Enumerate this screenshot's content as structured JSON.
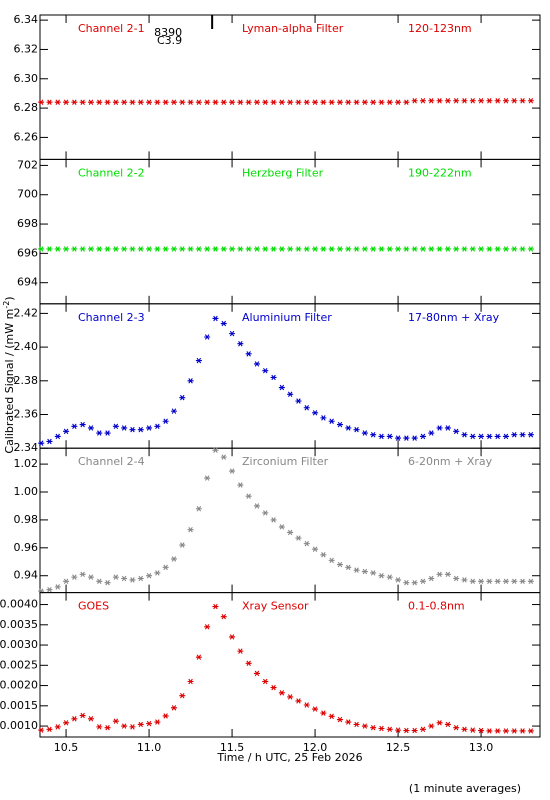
{
  "chart_data": [
    {
      "type": "scatter",
      "label": "Channel 2-1",
      "filter": "Lyman-alpha Filter",
      "band": "120-123nm",
      "color": "#dd0000",
      "event": {
        "x": 11.38,
        "labels": [
          "8390",
          "C3.9"
        ]
      },
      "x": [
        10.35,
        10.4,
        10.45,
        10.5,
        10.55,
        10.6,
        10.65,
        10.7,
        10.75,
        10.8,
        10.85,
        10.9,
        10.95,
        11.0,
        11.05,
        11.1,
        11.15,
        11.2,
        11.25,
        11.3,
        11.35,
        11.4,
        11.45,
        11.5,
        11.55,
        11.6,
        11.65,
        11.7,
        11.75,
        11.8,
        11.85,
        11.9,
        11.95,
        12.0,
        12.05,
        12.1,
        12.15,
        12.2,
        12.25,
        12.3,
        12.35,
        12.4,
        12.45,
        12.5,
        12.55,
        12.6,
        12.65,
        12.7,
        12.75,
        12.8,
        12.85,
        12.9,
        12.95,
        13.0,
        13.05,
        13.1,
        13.15,
        13.2,
        13.25,
        13.3
      ],
      "values": [
        6.284,
        6.284,
        6.284,
        6.284,
        6.284,
        6.284,
        6.284,
        6.284,
        6.284,
        6.284,
        6.284,
        6.284,
        6.284,
        6.284,
        6.284,
        6.284,
        6.284,
        6.284,
        6.284,
        6.284,
        6.284,
        6.284,
        6.284,
        6.284,
        6.284,
        6.284,
        6.284,
        6.284,
        6.284,
        6.284,
        6.284,
        6.284,
        6.284,
        6.284,
        6.284,
        6.284,
        6.284,
        6.284,
        6.284,
        6.284,
        6.284,
        6.284,
        6.284,
        6.284,
        6.284,
        6.285,
        6.285,
        6.285,
        6.285,
        6.285,
        6.285,
        6.285,
        6.285,
        6.285,
        6.285,
        6.285,
        6.285,
        6.285,
        6.285,
        6.285
      ],
      "ylim": [
        6.245,
        6.3435
      ],
      "yticks": [
        {
          "value": 6.26,
          "label": "6.26"
        },
        {
          "value": 6.28,
          "label": "6.28"
        },
        {
          "value": 6.3,
          "label": "6.30"
        },
        {
          "value": 6.32,
          "label": "6.32"
        },
        {
          "value": 6.34,
          "label": "6.34"
        }
      ]
    },
    {
      "type": "scatter",
      "label": "Channel 2-2",
      "filter": "Herzberg Filter",
      "band": "190-222nm",
      "color": "#00dd00",
      "x": [
        10.35,
        10.4,
        10.45,
        10.5,
        10.55,
        10.6,
        10.65,
        10.7,
        10.75,
        10.8,
        10.85,
        10.9,
        10.95,
        11.0,
        11.05,
        11.1,
        11.15,
        11.2,
        11.25,
        11.3,
        11.35,
        11.4,
        11.45,
        11.5,
        11.55,
        11.6,
        11.65,
        11.7,
        11.75,
        11.8,
        11.85,
        11.9,
        11.95,
        12.0,
        12.05,
        12.1,
        12.15,
        12.2,
        12.25,
        12.3,
        12.35,
        12.4,
        12.45,
        12.5,
        12.55,
        12.6,
        12.65,
        12.7,
        12.75,
        12.8,
        12.85,
        12.9,
        12.95,
        13.0,
        13.05,
        13.1,
        13.15,
        13.2,
        13.25,
        13.3
      ],
      "values": [
        696.3,
        696.3,
        696.3,
        696.3,
        696.3,
        696.3,
        696.3,
        696.3,
        696.3,
        696.3,
        696.3,
        696.3,
        696.3,
        696.3,
        696.3,
        696.3,
        696.3,
        696.3,
        696.3,
        696.3,
        696.3,
        696.3,
        696.3,
        696.3,
        696.3,
        696.3,
        696.3,
        696.3,
        696.3,
        696.3,
        696.3,
        696.3,
        696.3,
        696.3,
        696.3,
        696.3,
        696.3,
        696.3,
        696.3,
        696.3,
        696.3,
        696.3,
        696.3,
        696.3,
        696.3,
        696.3,
        696.3,
        696.3,
        696.3,
        696.3,
        696.3,
        696.3,
        696.3,
        696.3,
        696.3,
        696.3,
        696.3,
        696.3,
        696.3,
        696.3
      ],
      "ylim": [
        692.56,
        702.41
      ],
      "yticks": [
        694,
        696,
        698,
        700,
        702
      ]
    },
    {
      "type": "scatter",
      "label": "Channel 2-3",
      "filter": "Aluminium Filter",
      "band": "17-80nm + Xray",
      "color": "#0000cc",
      "x": [
        10.35,
        10.4,
        10.45,
        10.5,
        10.55,
        10.6,
        10.65,
        10.7,
        10.75,
        10.8,
        10.85,
        10.9,
        10.95,
        11.0,
        11.05,
        11.1,
        11.15,
        11.2,
        11.25,
        11.3,
        11.35,
        11.4,
        11.45,
        11.5,
        11.55,
        11.6,
        11.65,
        11.7,
        11.75,
        11.8,
        11.85,
        11.9,
        11.95,
        12.0,
        12.05,
        12.1,
        12.15,
        12.2,
        12.25,
        12.3,
        12.35,
        12.4,
        12.45,
        12.5,
        12.55,
        12.6,
        12.65,
        12.7,
        12.75,
        12.8,
        12.85,
        12.9,
        12.95,
        13.0,
        13.05,
        13.1,
        13.15,
        13.2,
        13.25,
        13.3
      ],
      "values": [
        2.343,
        2.344,
        2.347,
        2.35,
        2.353,
        2.354,
        2.352,
        2.349,
        2.349,
        2.353,
        2.352,
        2.351,
        2.351,
        2.352,
        2.353,
        2.356,
        2.362,
        2.37,
        2.38,
        2.392,
        2.406,
        2.417,
        2.414,
        2.408,
        2.402,
        2.396,
        2.39,
        2.386,
        2.382,
        2.376,
        2.372,
        2.368,
        2.364,
        2.361,
        2.358,
        2.356,
        2.354,
        2.352,
        2.351,
        2.349,
        2.348,
        2.347,
        2.347,
        2.346,
        2.346,
        2.346,
        2.347,
        2.349,
        2.352,
        2.352,
        2.35,
        2.348,
        2.347,
        2.347,
        2.347,
        2.347,
        2.347,
        2.348,
        2.348,
        2.348
      ],
      "ylim": [
        2.34,
        2.4257
      ],
      "yticks": [
        2.34,
        2.36,
        2.38,
        {
          "value": 2.4,
          "label": "2.40"
        },
        2.42
      ]
    },
    {
      "type": "scatter",
      "label": "Channel 2-4",
      "filter": "Zirconium Filter",
      "band": "6-20nm + Xray",
      "color": "#888888",
      "x": [
        10.35,
        10.4,
        10.45,
        10.5,
        10.55,
        10.6,
        10.65,
        10.7,
        10.75,
        10.8,
        10.85,
        10.9,
        10.95,
        11.0,
        11.05,
        11.1,
        11.15,
        11.2,
        11.25,
        11.3,
        11.35,
        11.4,
        11.45,
        11.5,
        11.55,
        11.6,
        11.65,
        11.7,
        11.75,
        11.8,
        11.85,
        11.9,
        11.95,
        12.0,
        12.05,
        12.1,
        12.15,
        12.2,
        12.25,
        12.3,
        12.35,
        12.4,
        12.45,
        12.5,
        12.55,
        12.6,
        12.65,
        12.7,
        12.75,
        12.8,
        12.85,
        12.9,
        12.95,
        13.0,
        13.05,
        13.1,
        13.15,
        13.2,
        13.25,
        13.3
      ],
      "values": [
        0.929,
        0.93,
        0.932,
        0.936,
        0.939,
        0.941,
        0.939,
        0.936,
        0.935,
        0.939,
        0.938,
        0.937,
        0.938,
        0.94,
        0.942,
        0.946,
        0.952,
        0.962,
        0.973,
        0.988,
        1.01,
        1.03,
        1.025,
        1.015,
        1.005,
        0.997,
        0.99,
        0.985,
        0.98,
        0.975,
        0.971,
        0.967,
        0.963,
        0.959,
        0.955,
        0.951,
        0.948,
        0.946,
        0.944,
        0.943,
        0.942,
        0.94,
        0.939,
        0.937,
        0.935,
        0.935,
        0.936,
        0.938,
        0.941,
        0.941,
        0.938,
        0.937,
        0.936,
        0.936,
        0.936,
        0.936,
        0.936,
        0.936,
        0.936,
        0.936
      ],
      "ylim": [
        0.9279,
        1.0314
      ],
      "yticks": [
        0.94,
        0.96,
        0.98,
        {
          "value": 1.0,
          "label": "1.00"
        },
        1.02
      ]
    },
    {
      "type": "scatter",
      "label": "GOES",
      "filter": "Xray Sensor",
      "band": "0.1-0.8nm",
      "color": "#dd0000",
      "x": [
        10.35,
        10.4,
        10.45,
        10.5,
        10.55,
        10.6,
        10.65,
        10.7,
        10.75,
        10.8,
        10.85,
        10.9,
        10.95,
        11.0,
        11.05,
        11.1,
        11.15,
        11.2,
        11.25,
        11.3,
        11.35,
        11.4,
        11.45,
        11.5,
        11.55,
        11.6,
        11.65,
        11.7,
        11.75,
        11.8,
        11.85,
        11.9,
        11.95,
        12.0,
        12.05,
        12.1,
        12.15,
        12.2,
        12.25,
        12.3,
        12.35,
        12.4,
        12.45,
        12.5,
        12.55,
        12.6,
        12.65,
        12.7,
        12.75,
        12.8,
        12.85,
        12.9,
        12.95,
        13.0,
        13.05,
        13.1,
        13.15,
        13.2,
        13.25,
        13.3
      ],
      "values": [
        0.0009,
        0.00092,
        0.00098,
        0.00108,
        0.00118,
        0.00126,
        0.00118,
        0.00098,
        0.00096,
        0.00112,
        0.001,
        0.00098,
        0.00104,
        0.00106,
        0.0011,
        0.00125,
        0.00145,
        0.00175,
        0.0021,
        0.0027,
        0.00345,
        0.00395,
        0.0037,
        0.0032,
        0.00285,
        0.00255,
        0.0023,
        0.0021,
        0.00195,
        0.00182,
        0.00172,
        0.00162,
        0.00152,
        0.00142,
        0.00132,
        0.00124,
        0.00116,
        0.0011,
        0.00104,
        0.001,
        0.00096,
        0.00094,
        0.00092,
        0.0009,
        0.00089,
        0.00089,
        0.00092,
        0.001,
        0.00108,
        0.00104,
        0.00096,
        0.00092,
        0.0009,
        0.00089,
        0.00088,
        0.00088,
        0.00088,
        0.00088,
        0.00088,
        0.00088
      ],
      "ylim": [
        0.00073,
        0.004295
      ],
      "yticks": [
        {
          "value": 0.001,
          "label": "0.0010"
        },
        {
          "value": 0.0015,
          "label": "0.0015"
        },
        {
          "value": 0.002,
          "label": "0.0020"
        },
        {
          "value": 0.0025,
          "label": "0.0025"
        },
        {
          "value": 0.003,
          "label": "0.0030"
        },
        {
          "value": 0.0035,
          "label": "0.0035"
        },
        {
          "value": 0.004,
          "label": "0.0040"
        }
      ],
      "xlim": [
        10.343,
        13.355
      ],
      "xticks": [
        10.5,
        {
          "value": 11.0,
          "label": "11.0"
        },
        11.5,
        {
          "value": 12.0,
          "label": "12.0"
        },
        12.5,
        {
          "value": 13.0,
          "label": "13.0"
        }
      ],
      "xlabel": "Time / h UTC, 25 Feb 2026"
    }
  ],
  "ylabel": [
    "Calibrated Signal / (mW m",
    "-2",
    ")"
  ],
  "footnote": "(1 minute averages)"
}
